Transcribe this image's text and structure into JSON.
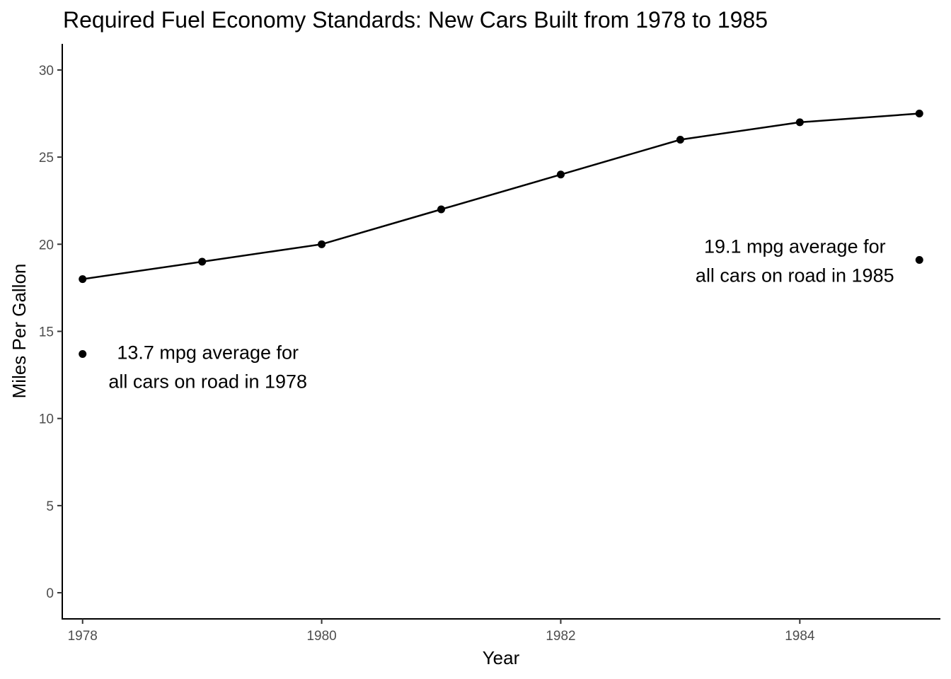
{
  "chart_data": {
    "type": "line",
    "title": "Required Fuel Economy Standards: New Cars Built from 1978 to 1985",
    "xlabel": "Year",
    "ylabel": "Miles Per Gallon",
    "xlim": [
      1977.83,
      1985.17
    ],
    "ylim": [
      -1.5,
      31.5
    ],
    "x_ticks": [
      1978,
      1980,
      1982,
      1984
    ],
    "y_ticks": [
      0,
      5,
      10,
      15,
      20,
      25,
      30
    ],
    "grid": false,
    "series": [
      {
        "x": [
          1978,
          1979,
          1980,
          1981,
          1982,
          1983,
          1984,
          1985
        ],
        "values": [
          18,
          19,
          20,
          22,
          24,
          26,
          27,
          27.5
        ]
      }
    ],
    "annotations": [
      {
        "x": 1978,
        "y": 13.7,
        "lines": [
          "13.7 mpg average for",
          "all cars on road in 1978"
        ]
      },
      {
        "x": 1985,
        "y": 19.1,
        "lines": [
          "19.1 mpg average for",
          "all cars on road in 1985"
        ]
      }
    ]
  }
}
